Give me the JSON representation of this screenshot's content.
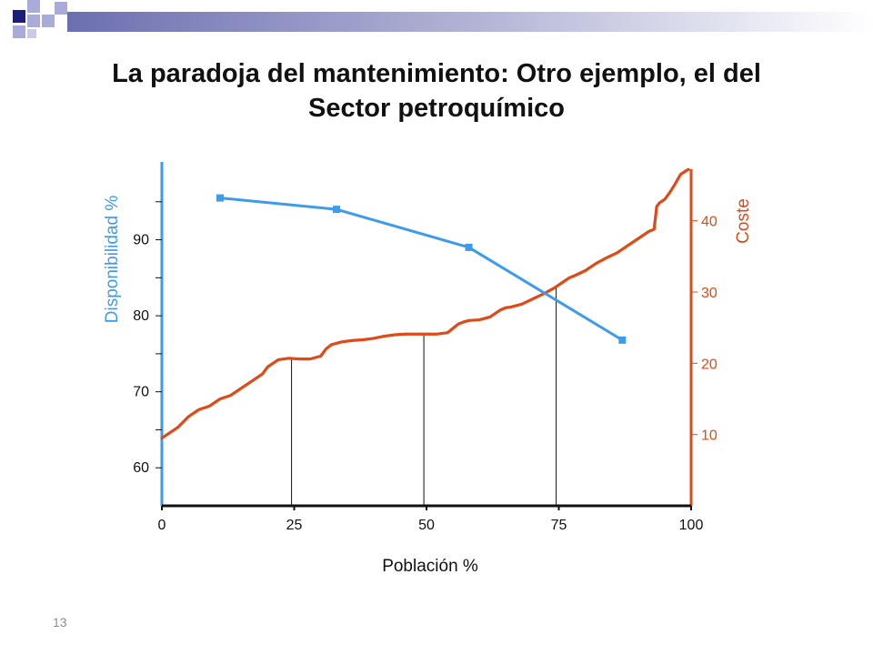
{
  "slide": {
    "title": "La paradoja del mantenimiento: Otro ejemplo, el del Sector petroquímico",
    "page_number": "13"
  },
  "colors": {
    "availability": "#3d9be9",
    "cost": "#e04a17",
    "axis": "#111111",
    "deco_navy": "#1b1f7a",
    "deco_lavender": "#a9acd9"
  },
  "chart_data": {
    "type": "line",
    "title": "",
    "xlabel": "Población  %",
    "x_ticks": [
      "0",
      "25",
      "50",
      "75",
      "100"
    ],
    "xlim": [
      0,
      100
    ],
    "y_left": {
      "label": "Disponibilidad  %",
      "ylim": [
        55,
        100
      ],
      "ticks": [
        "60",
        "70",
        "80",
        "90"
      ]
    },
    "y_right": {
      "label": "Coste",
      "ylim": [
        0,
        48
      ],
      "ticks": [
        "10",
        "20",
        "30",
        "40"
      ]
    },
    "series": [
      {
        "axis": "left",
        "x": [
          11,
          33,
          58,
          87
        ],
        "y": [
          95.5,
          94,
          89,
          76.8
        ]
      },
      {
        "axis": "right",
        "x": [
          0,
          3,
          5,
          7,
          9,
          11,
          13,
          15,
          17,
          19,
          20,
          21,
          22,
          24,
          26,
          28,
          30,
          31,
          32,
          34,
          36,
          38,
          40,
          42,
          44,
          46,
          48,
          50,
          52,
          54,
          56,
          57,
          58,
          60,
          62,
          64,
          65,
          66,
          68,
          70,
          72,
          74,
          76,
          77,
          78,
          80,
          82,
          84,
          86,
          88,
          90,
          92,
          93,
          93.5,
          94,
          95,
          96,
          97,
          98,
          99,
          99.5
        ],
        "y": [
          9.5,
          11,
          12.5,
          13.5,
          14,
          15,
          15.5,
          16.5,
          17.5,
          18.5,
          19.5,
          20,
          20.5,
          20.7,
          20.6,
          20.6,
          21,
          22,
          22.6,
          23,
          23.2,
          23.3,
          23.5,
          23.8,
          24,
          24.1,
          24.1,
          24.1,
          24.1,
          24.3,
          25.5,
          25.8,
          26,
          26.1,
          26.5,
          27.5,
          27.8,
          27.9,
          28.3,
          29,
          29.7,
          30.5,
          31.5,
          32,
          32.3,
          33,
          34,
          34.8,
          35.5,
          36.5,
          37.5,
          38.5,
          38.8,
          42,
          42.5,
          43,
          44,
          45.2,
          46.5,
          47,
          47.2
        ]
      }
    ],
    "reference_lines_x": [
      24.5,
      49.5,
      74.5
    ],
    "grid": false
  }
}
